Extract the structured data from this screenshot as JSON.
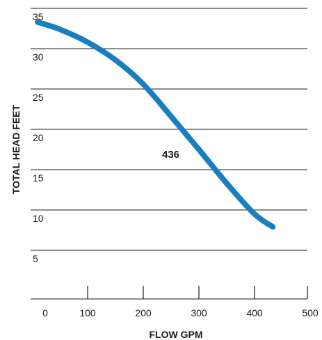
{
  "chart_data": {
    "type": "line",
    "title": "",
    "xlabel": "FLOW GPM",
    "ylabel": "TOTAL HEAD FEET",
    "xlim": [
      0,
      500
    ],
    "ylim": [
      0,
      35
    ],
    "x_ticks": [
      0,
      100,
      200,
      300,
      400,
      500
    ],
    "y_ticks": [
      5,
      10,
      15,
      20,
      25,
      30,
      35
    ],
    "grid": "horizontal",
    "series": [
      {
        "name": "436",
        "color": "#1a7fc1",
        "x": [
          10,
          50,
          100,
          150,
          200,
          250,
          300,
          350,
          400,
          433
        ],
        "y": [
          33.3,
          32.4,
          30.8,
          28.6,
          25.6,
          21.6,
          17.5,
          13.3,
          9.5,
          7.9
        ]
      }
    ]
  }
}
